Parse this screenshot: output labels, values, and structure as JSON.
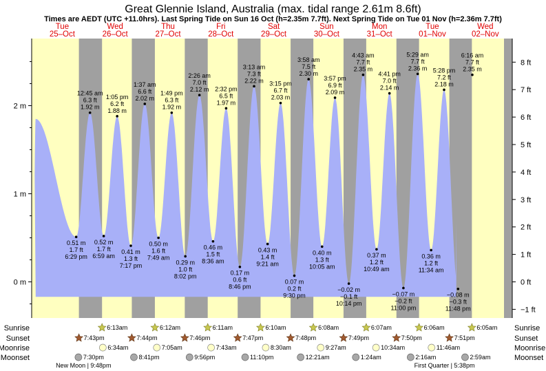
{
  "title": "Great Glennie Island, Australia (max. tidal range 2.61m 8.6ft)",
  "subtitle": "Times are AEDT (UTC +11.0hrs). Last Spring Tide on Sun 16 Oct (h=2.35m 7.7ft). Next Spring Tide on Tue 01 Nov (h=2.36m 7.7ft)",
  "colors": {
    "day": "#ffffc0",
    "night": "#a0a0a0",
    "water": "#a8b0f8",
    "axis": "#000000",
    "day_label": "#e00000"
  },
  "chart_data": {
    "type": "area",
    "title": "Great Glennie Island, Australia (max. tidal range 2.61m 8.6ft)",
    "x_unit": "hours from Tue 25-Oct 00:00",
    "x_range": [
      -2,
      201
    ],
    "ylim_m": [
      -0.45,
      2.74
    ],
    "ylim_ft": [
      -1.48,
      8.99
    ],
    "y_ticks_m": [
      {
        "v": 0,
        "label": "0 m"
      },
      {
        "v": 1,
        "label": "1 m"
      },
      {
        "v": 2,
        "label": "2 m"
      }
    ],
    "y_ticks_ft": [
      {
        "v": -1,
        "label": "−1 ft"
      },
      {
        "v": 0,
        "label": "0 ft"
      },
      {
        "v": 1,
        "label": "1 ft"
      },
      {
        "v": 2,
        "label": "2 ft"
      },
      {
        "v": 3,
        "label": "3 ft"
      },
      {
        "v": 4,
        "label": "4 ft"
      },
      {
        "v": 5,
        "label": "5 ft"
      },
      {
        "v": 6,
        "label": "6 ft"
      },
      {
        "v": 7,
        "label": "7 ft"
      },
      {
        "v": 8,
        "label": "8 ft"
      }
    ],
    "days": [
      {
        "name": "Tue",
        "date": "25–Oct"
      },
      {
        "name": "Wed",
        "date": "26–Oct"
      },
      {
        "name": "Thu",
        "date": "27–Oct"
      },
      {
        "name": "Fri",
        "date": "28–Oct"
      },
      {
        "name": "Sat",
        "date": "29–Oct"
      },
      {
        "name": "Sun",
        "date": "30–Oct"
      },
      {
        "name": "Mon",
        "date": "31–Oct"
      },
      {
        "name": "Tue",
        "date": "01–Nov"
      },
      {
        "name": "Wed",
        "date": "02–Nov"
      }
    ],
    "curve_start": {
      "t": 0.1,
      "h": 1.85
    },
    "curve_end_t": 191,
    "tides": [
      {
        "t": 18.48,
        "h": 0.51,
        "type": "low",
        "m": "0.51 m",
        "ft": "1.7 ft",
        "time": "6:29 pm"
      },
      {
        "t": 24.75,
        "h": 1.92,
        "type": "high",
        "m": "1.92 m",
        "ft": "6.3 ft",
        "time": "12:45 am"
      },
      {
        "t": 30.98,
        "h": 0.52,
        "type": "low",
        "m": "0.52 m",
        "ft": "1.7 ft",
        "time": "6:59 am"
      },
      {
        "t": 37.08,
        "h": 1.88,
        "type": "high",
        "m": "1.88 m",
        "ft": "6.2 ft",
        "time": "1:05 pm"
      },
      {
        "t": 43.28,
        "h": 0.41,
        "type": "low",
        "m": "0.41 m",
        "ft": "1.3 ft",
        "time": "7:17 pm"
      },
      {
        "t": 49.62,
        "h": 2.02,
        "type": "high",
        "m": "2.02 m",
        "ft": "6.6 ft",
        "time": "1:37 am"
      },
      {
        "t": 55.82,
        "h": 0.5,
        "type": "low",
        "m": "0.50 m",
        "ft": "1.6 ft",
        "time": "7:49 am"
      },
      {
        "t": 61.82,
        "h": 1.92,
        "type": "high",
        "m": "1.92 m",
        "ft": "6.3 ft",
        "time": "1:49 pm"
      },
      {
        "t": 68.03,
        "h": 0.29,
        "type": "low",
        "m": "0.29 m",
        "ft": "1.0 ft",
        "time": "8:02 pm"
      },
      {
        "t": 74.43,
        "h": 2.12,
        "type": "high",
        "m": "2.12 m",
        "ft": "7.0 ft",
        "time": "2:26 am"
      },
      {
        "t": 80.6,
        "h": 0.46,
        "type": "low",
        "m": "0.46 m",
        "ft": "1.5 ft",
        "time": "8:36 am"
      },
      {
        "t": 86.53,
        "h": 1.97,
        "type": "high",
        "m": "1.97 m",
        "ft": "6.5 ft",
        "time": "2:32 pm"
      },
      {
        "t": 92.77,
        "h": 0.17,
        "type": "low",
        "m": "0.17 m",
        "ft": "0.6 ft",
        "time": "8:46 pm"
      },
      {
        "t": 99.22,
        "h": 2.22,
        "type": "high",
        "m": "2.22 m",
        "ft": "7.3 ft",
        "time": "3:13 am"
      },
      {
        "t": 105.35,
        "h": 0.43,
        "type": "low",
        "m": "0.43 m",
        "ft": "1.4 ft",
        "time": "9:21 am"
      },
      {
        "t": 111.25,
        "h": 2.03,
        "type": "high",
        "m": "2.03 m",
        "ft": "6.7 ft",
        "time": "3:15 pm"
      },
      {
        "t": 117.5,
        "h": 0.07,
        "type": "low",
        "m": "0.07 m",
        "ft": "0.2 ft",
        "time": "9:30 pm"
      },
      {
        "t": 123.97,
        "h": 2.3,
        "type": "high",
        "m": "2.30 m",
        "ft": "7.5 ft",
        "time": "3:58 am"
      },
      {
        "t": 130.08,
        "h": 0.4,
        "type": "low",
        "m": "0.40 m",
        "ft": "1.3 ft",
        "time": "10:05 am"
      },
      {
        "t": 135.95,
        "h": 2.09,
        "type": "high",
        "m": "2.09 m",
        "ft": "6.9 ft",
        "time": "3:57 pm"
      },
      {
        "t": 142.23,
        "h": -0.02,
        "type": "low",
        "m": "−0.02 m",
        "ft": "−0.1 ft",
        "time": "10:14 pm"
      },
      {
        "t": 148.72,
        "h": 2.35,
        "type": "high",
        "m": "2.35 m",
        "ft": "7.7 ft",
        "time": "4:43 am"
      },
      {
        "t": 154.82,
        "h": 0.37,
        "type": "low",
        "m": "0.37 m",
        "ft": "1.2 ft",
        "time": "10:49 am"
      },
      {
        "t": 160.68,
        "h": 2.14,
        "type": "high",
        "m": "2.14 m",
        "ft": "7.0 ft",
        "time": "4:41 pm"
      },
      {
        "t": 167.0,
        "h": -0.07,
        "type": "low",
        "m": "−0.07 m",
        "ft": "−0.2 ft",
        "time": "11:00 pm"
      },
      {
        "t": 173.48,
        "h": 2.36,
        "type": "high",
        "m": "2.36 m",
        "ft": "7.7 ft",
        "time": "5:29 am"
      },
      {
        "t": 179.57,
        "h": 0.36,
        "type": "low",
        "m": "0.36 m",
        "ft": "1.2 ft",
        "time": "11:34 am"
      },
      {
        "t": 185.47,
        "h": 2.18,
        "type": "high",
        "m": "2.18 m",
        "ft": "7.2 ft",
        "time": "5:28 pm"
      },
      {
        "t": 191.8,
        "h": -0.08,
        "type": "low",
        "m": "−0.08 m",
        "ft": "−0.3 ft",
        "time": "11:48 pm"
      },
      {
        "t": 198.27,
        "h": 2.35,
        "type": "high",
        "m": "2.35 m",
        "ft": "7.7 ft",
        "time": "6:16 am"
      }
    ],
    "nights": [
      [
        19.72,
        30.22
      ],
      [
        43.73,
        54.2
      ],
      [
        67.77,
        78.18
      ],
      [
        91.78,
        102.17
      ],
      [
        115.8,
        126.13
      ],
      [
        139.82,
        150.12
      ],
      [
        163.83,
        174.1
      ],
      [
        187.85,
        198.08
      ]
    ]
  },
  "rows": {
    "sunrise_label": "Sunrise",
    "sunset_label": "Sunset",
    "moonrise_label": "Moonrise",
    "moonset_label": "Moonset",
    "sunrise": [
      {
        "t": 30.22,
        "text": "6:13am"
      },
      {
        "t": 54.2,
        "text": "6:12am"
      },
      {
        "t": 78.18,
        "text": "6:11am"
      },
      {
        "t": 102.17,
        "text": "6:10am"
      },
      {
        "t": 126.13,
        "text": "6:08am"
      },
      {
        "t": 150.12,
        "text": "6:07am"
      },
      {
        "t": 174.1,
        "text": "6:06am"
      },
      {
        "t": 198.08,
        "text": "6:05am"
      }
    ],
    "sunset": [
      {
        "t": 19.72,
        "text": "7:43pm"
      },
      {
        "t": 43.73,
        "text": "7:44pm"
      },
      {
        "t": 67.77,
        "text": "7:46pm"
      },
      {
        "t": 91.78,
        "text": "7:47pm"
      },
      {
        "t": 115.8,
        "text": "7:48pm"
      },
      {
        "t": 139.82,
        "text": "7:49pm"
      },
      {
        "t": 163.83,
        "text": "7:50pm"
      },
      {
        "t": 187.85,
        "text": "7:51pm"
      }
    ],
    "moonrise": [
      {
        "t": 30.57,
        "text": "6:34am"
      },
      {
        "t": 55.08,
        "text": "7:05am"
      },
      {
        "t": 79.72,
        "text": "7:43am"
      },
      {
        "t": 104.5,
        "text": "8:30am"
      },
      {
        "t": 129.45,
        "text": "9:27am"
      },
      {
        "t": 154.57,
        "text": "10:34am"
      },
      {
        "t": 179.77,
        "text": "11:46am"
      }
    ],
    "moonset": [
      {
        "t": 19.5,
        "text": "7:30pm"
      },
      {
        "t": 44.68,
        "text": "8:41pm"
      },
      {
        "t": 69.93,
        "text": "9:56pm"
      },
      {
        "t": 95.17,
        "text": "11:10pm"
      },
      {
        "t": 120.35,
        "text": "12:21am"
      },
      {
        "t": 145.4,
        "text": "1:24am"
      },
      {
        "t": 170.27,
        "text": "2:16am"
      },
      {
        "t": 194.98,
        "text": "2:59am"
      }
    ],
    "phases": [
      {
        "t": 21.8,
        "text": "New Moon | 9:48pm"
      },
      {
        "t": 185.63,
        "text": "First Quarter | 5:38pm"
      }
    ]
  }
}
